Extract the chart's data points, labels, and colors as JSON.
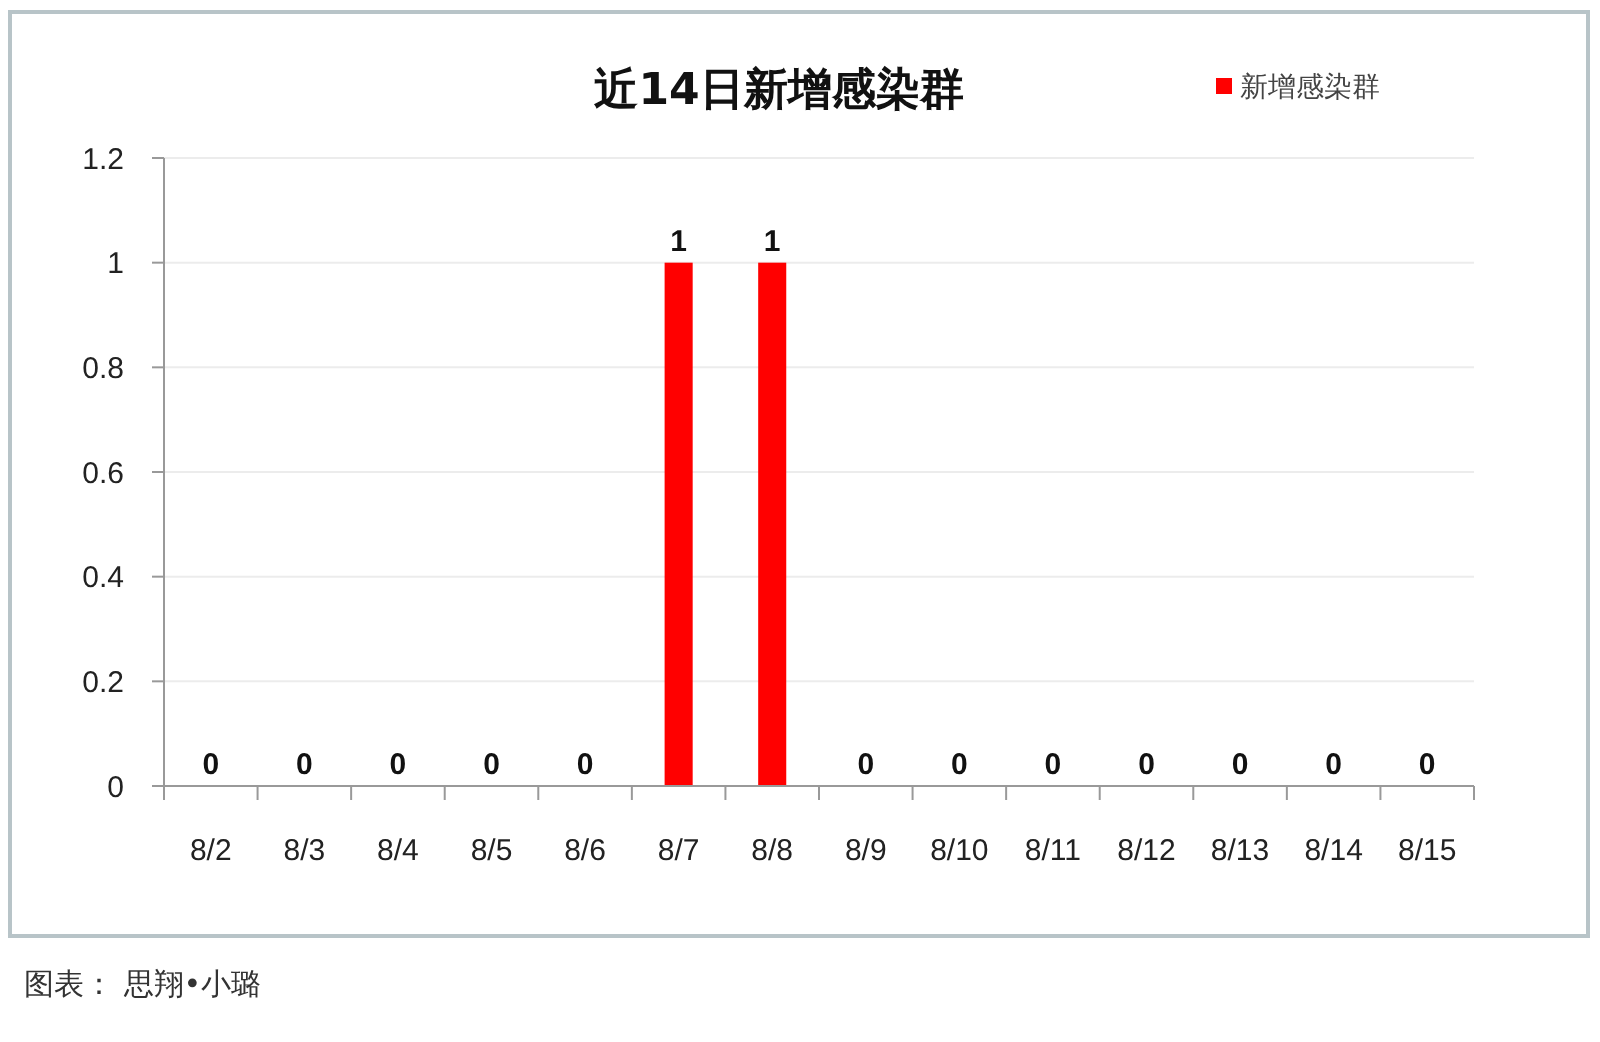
{
  "chart_data": {
    "type": "bar",
    "title": "近14日新增感染群",
    "categories": [
      "8/2",
      "8/3",
      "8/4",
      "8/5",
      "8/6",
      "8/7",
      "8/8",
      "8/9",
      "8/10",
      "8/11",
      "8/12",
      "8/13",
      "8/14",
      "8/15"
    ],
    "series": [
      {
        "name": "新增感染群",
        "color": "#ff0000",
        "values": [
          0,
          0,
          0,
          0,
          0,
          1,
          1,
          0,
          0,
          0,
          0,
          0,
          0,
          0
        ]
      }
    ],
    "ylim": [
      0,
      1.2
    ],
    "yticks": [
      0,
      0.2,
      0.4,
      0.6,
      0.8,
      1,
      1.2
    ],
    "grid": "y",
    "legend": "top right",
    "data_labels": true,
    "annotations": [
      "图表： 思翔•小璐"
    ]
  }
}
